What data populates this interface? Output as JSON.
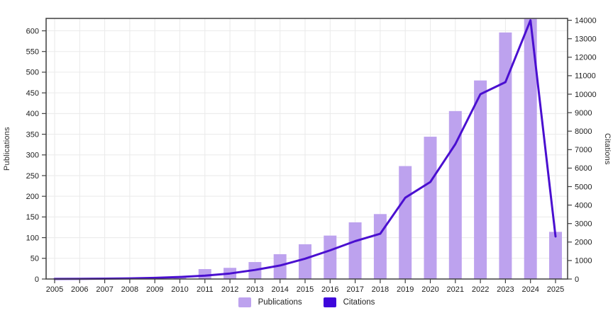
{
  "chart_data": {
    "type": "combo",
    "title": "",
    "categories": [
      "2005",
      "2006",
      "2007",
      "2008",
      "2009",
      "2010",
      "2011",
      "2012",
      "2013",
      "2014",
      "2015",
      "2016",
      "2017",
      "2018",
      "2019",
      "2020",
      "2021",
      "2022",
      "2023",
      "2024",
      "2025"
    ],
    "series": [
      {
        "name": "Publications",
        "type": "bar",
        "axis": "left",
        "color": "#bda2ee",
        "values": [
          1,
          1,
          1,
          2,
          3,
          7,
          24,
          27,
          41,
          60,
          84,
          105,
          137,
          157,
          273,
          344,
          406,
          480,
          596,
          630,
          114
        ]
      },
      {
        "name": "Citations",
        "type": "line",
        "axis": "right",
        "color": "#4a0fd0",
        "legend_color": "#3e06db",
        "values": [
          5,
          10,
          20,
          35,
          60,
          110,
          180,
          300,
          490,
          730,
          1100,
          1550,
          2050,
          2450,
          4400,
          5250,
          7300,
          10000,
          10650,
          14000,
          2300
        ]
      }
    ],
    "left_axis": {
      "label": "Publications",
      "min": 0,
      "max": 630,
      "tick_step": 50,
      "ticks": [
        0,
        50,
        100,
        150,
        200,
        250,
        300,
        350,
        400,
        450,
        500,
        550,
        600
      ]
    },
    "right_axis": {
      "label": "Citations",
      "min": 0,
      "max": 14100,
      "tick_step": 1000,
      "ticks": [
        0,
        1000,
        2000,
        3000,
        4000,
        5000,
        6000,
        7000,
        8000,
        9000,
        10000,
        11000,
        12000,
        13000,
        14000
      ]
    },
    "x_axis": {
      "label": ""
    },
    "grid": true,
    "frame": true,
    "legend_position": "bottom"
  },
  "colors": {
    "grid": "#eaeaea",
    "axis": "#3f3f3f",
    "text": "#1c1c1c",
    "background": "#ffffff"
  }
}
